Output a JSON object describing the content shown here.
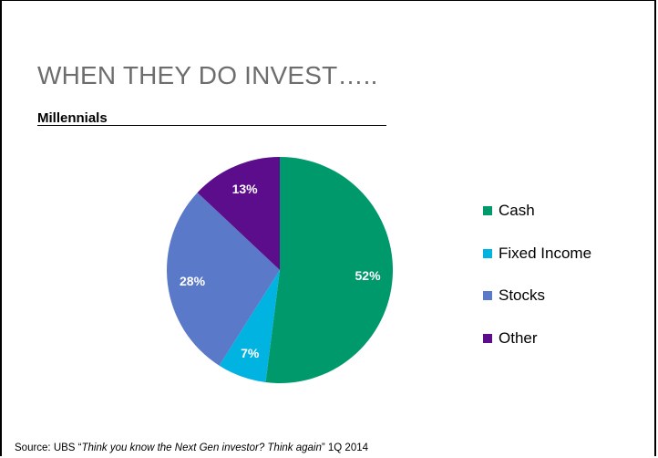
{
  "slide": {
    "title": "WHEN THEY DO INVEST…..",
    "subtitle": "Millennials",
    "source_prefix": "Source: UBS “",
    "source_italic": "Think you know the Next Gen investor? Think again",
    "source_suffix": "” 1Q 2014"
  },
  "chart_data": {
    "type": "pie",
    "title": "",
    "categories": [
      "Cash",
      "Fixed Income",
      "Stocks",
      "Other"
    ],
    "values": [
      52,
      7,
      28,
      13
    ],
    "data_labels": [
      "52%",
      "7%",
      "28%",
      "13%"
    ],
    "colors": [
      "#00996b",
      "#00b3e0",
      "#5b79c9",
      "#5c0d8c"
    ],
    "start_angle_deg": 0,
    "direction": "clockwise",
    "legend": "right"
  }
}
